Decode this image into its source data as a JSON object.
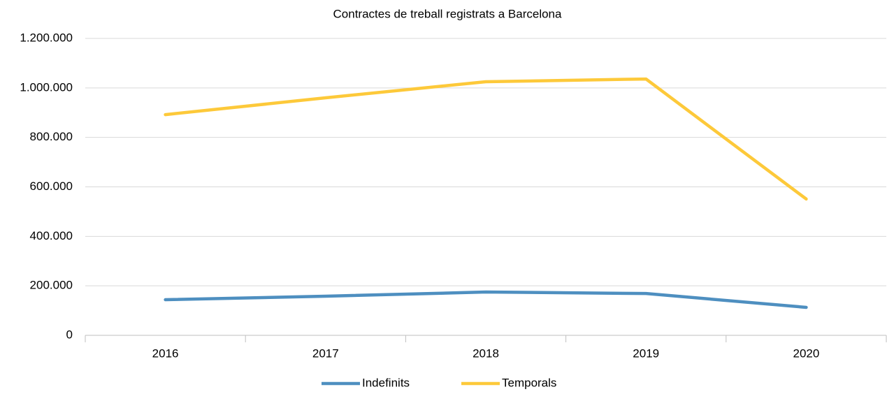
{
  "chart_data": {
    "type": "line",
    "title": "Contractes de treball registrats a Barcelona",
    "categories": [
      "2016",
      "2017",
      "2018",
      "2019",
      "2020"
    ],
    "series": [
      {
        "name": "Indefinits",
        "color": "#4e8fc0",
        "values": [
          144000,
          158000,
          175000,
          169000,
          113000
        ]
      },
      {
        "name": "Temporals",
        "color": "#fdc93a",
        "values": [
          892000,
          960000,
          1025000,
          1036000,
          551000
        ]
      }
    ],
    "ylim": [
      0,
      1200000
    ],
    "yticks": [
      0,
      {
        "value": 200000,
        "label": "200.000"
      },
      {
        "value": 400000,
        "label": "400.000"
      },
      {
        "value": 600000,
        "label": "600.000"
      },
      {
        "value": 800000,
        "label": "800.000"
      },
      {
        "value": 1000000,
        "label": "1.000.000"
      },
      {
        "value": 1200000,
        "label": "1.200.000"
      }
    ],
    "grid": true,
    "legend": "bottom"
  }
}
